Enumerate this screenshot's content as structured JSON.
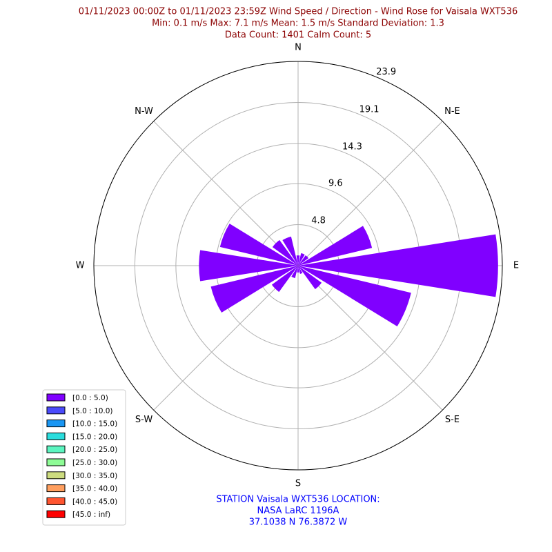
{
  "chart_data": {
    "type": "windrose",
    "title": [
      "01/11/2023 00:00Z to 01/11/2023 23:59Z Wind Speed / Direction - Wind Rose for Vaisala WXT536",
      "Min: 0.1 m/s   Max: 7.1 m/s   Mean: 1.5 m/s  Standard Deviation: 1.3",
      "Data Count: 1401  Calm Count:  5"
    ],
    "title_color": "#8b0000",
    "footer": [
      "STATION Vaisala WXT536 LOCATION:",
      "NASA LaRC 1196A",
      "37.1038 N 76.3872 W"
    ],
    "footer_color": "#0000ff",
    "direction_labels": [
      "N",
      "N-E",
      "E",
      "S-E",
      "S",
      "S-W",
      "W",
      "N-W"
    ],
    "ylim": [
      0,
      23.9
    ],
    "yticks": [
      4.8,
      9.6,
      14.3,
      19.1,
      23.9
    ],
    "grid": true,
    "legend_position": "lower left",
    "series": [
      {
        "name": "[0.0 : 5.0)",
        "color": "#8000ff",
        "values": [
          1.2,
          1.5,
          1.5,
          8.9,
          23.4,
          13.6,
          3.4,
          1.0,
          0.8,
          1.5,
          3.8,
          10.5,
          11.6,
          9.4,
          3.7,
          3.5
        ]
      },
      {
        "name": "[5.0 : 10.0)",
        "color": "#4b4bfb",
        "values": [
          0,
          0,
          0,
          0,
          0,
          0,
          0,
          0,
          0,
          0,
          0,
          0,
          0,
          0,
          0,
          0
        ]
      },
      {
        "name": "[10.0 : 15.0)",
        "color": "#1996f3",
        "values": [
          0,
          0,
          0,
          0,
          0,
          0,
          0,
          0,
          0,
          0,
          0,
          0,
          0,
          0,
          0,
          0
        ]
      },
      {
        "name": "[15.0 : 20.0)",
        "color": "#2adddd",
        "values": [
          0,
          0,
          0,
          0,
          0,
          0,
          0,
          0,
          0,
          0,
          0,
          0,
          0,
          0,
          0,
          0
        ]
      },
      {
        "name": "[20.0 : 25.0)",
        "color": "#5cf5c0",
        "values": [
          0,
          0,
          0,
          0,
          0,
          0,
          0,
          0,
          0,
          0,
          0,
          0,
          0,
          0,
          0,
          0
        ]
      },
      {
        "name": "[25.0 : 30.0)",
        "color": "#8efc96",
        "values": [
          0,
          0,
          0,
          0,
          0,
          0,
          0,
          0,
          0,
          0,
          0,
          0,
          0,
          0,
          0,
          0
        ]
      },
      {
        "name": "[30.0 : 35.0)",
        "color": "#cddc7f",
        "values": [
          0,
          0,
          0,
          0,
          0,
          0,
          0,
          0,
          0,
          0,
          0,
          0,
          0,
          0,
          0,
          0
        ]
      },
      {
        "name": "[35.0 : 40.0)",
        "color": "#ff9f5f",
        "values": [
          0,
          0,
          0,
          0,
          0,
          0,
          0,
          0,
          0,
          0,
          0,
          0,
          0,
          0,
          0,
          0
        ]
      },
      {
        "name": "[40.0 : 45.0)",
        "color": "#ff5530",
        "values": [
          0,
          0,
          0,
          0,
          0,
          0,
          0,
          0,
          0,
          0,
          0,
          0,
          0,
          0,
          0,
          0
        ]
      },
      {
        "name": "[45.0 : inf)",
        "color": "#ff0000",
        "values": [
          0,
          0,
          0,
          0,
          0,
          0,
          0,
          0,
          0,
          0,
          0,
          0,
          0,
          0,
          0,
          0
        ]
      }
    ]
  }
}
